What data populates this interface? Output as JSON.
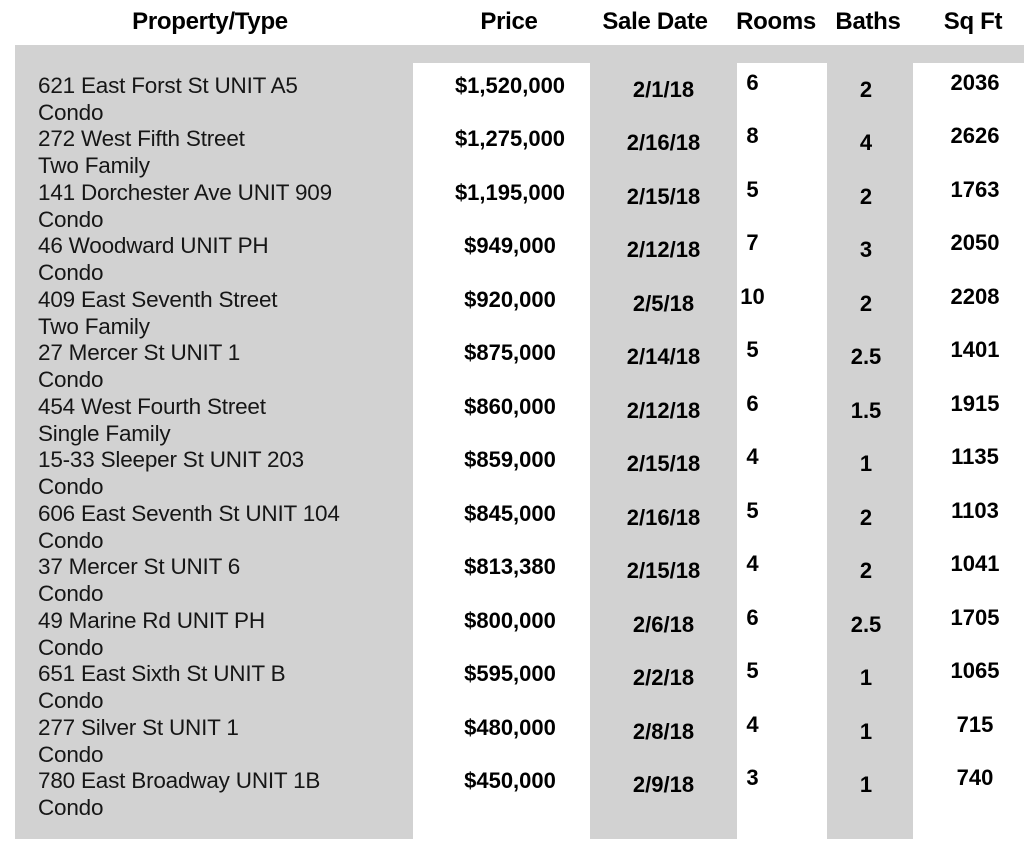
{
  "colors": {
    "table_background_gray": "#d2d2d2",
    "column_strip_white": "#ffffff",
    "text_black": "#000000"
  },
  "table": {
    "columns": {
      "property_type": "Property/Type",
      "price": "Price",
      "sale_date": "Sale Date",
      "rooms": "Rooms",
      "baths": "Baths",
      "sqft": "Sq Ft"
    },
    "rows": [
      {
        "address": "621 East Forst St UNIT A5",
        "type": "Condo",
        "price": "$1,520,000",
        "sale_date": "2/1/18",
        "rooms": "6",
        "baths": "2",
        "sqft": "2036"
      },
      {
        "address": "272 West Fifth Street",
        "type": "Two Family",
        "price": "$1,275,000",
        "sale_date": "2/16/18",
        "rooms": "8",
        "baths": "4",
        "sqft": "2626"
      },
      {
        "address": "141 Dorchester Ave UNIT 909",
        "type": "Condo",
        "price": "$1,195,000",
        "sale_date": "2/15/18",
        "rooms": "5",
        "baths": "2",
        "sqft": "1763"
      },
      {
        "address": "46 Woodward UNIT PH",
        "type": "Condo",
        "price": "$949,000",
        "sale_date": "2/12/18",
        "rooms": "7",
        "baths": "3",
        "sqft": "2050"
      },
      {
        "address": "409 East Seventh Street",
        "type": "Two Family",
        "price": "$920,000",
        "sale_date": "2/5/18",
        "rooms": "10",
        "baths": "2",
        "sqft": "2208"
      },
      {
        "address": "27 Mercer St UNIT 1",
        "type": "Condo",
        "price": "$875,000",
        "sale_date": "2/14/18",
        "rooms": "5",
        "baths": "2.5",
        "sqft": "1401"
      },
      {
        "address": "454 West Fourth Street",
        "type": "Single Family",
        "price": "$860,000",
        "sale_date": "2/12/18",
        "rooms": "6",
        "baths": "1.5",
        "sqft": "1915"
      },
      {
        "address": "15-33 Sleeper St UNIT 203",
        "type": "Condo",
        "price": "$859,000",
        "sale_date": "2/15/18",
        "rooms": "4",
        "baths": "1",
        "sqft": "1135"
      },
      {
        "address": "606 East Seventh St UNIT 104",
        "type": "Condo",
        "price": "$845,000",
        "sale_date": "2/16/18",
        "rooms": "5",
        "baths": "2",
        "sqft": "1103"
      },
      {
        "address": "37 Mercer St UNIT 6",
        "type": "Condo",
        "price": "$813,380",
        "sale_date": "2/15/18",
        "rooms": "4",
        "baths": "2",
        "sqft": "1041"
      },
      {
        "address": "49 Marine Rd UNIT PH",
        "type": "Condo",
        "price": "$800,000",
        "sale_date": "2/6/18",
        "rooms": "6",
        "baths": "2.5",
        "sqft": "1705"
      },
      {
        "address": "651 East Sixth St UNIT B",
        "type": "Condo",
        "price": "$595,000",
        "sale_date": "2/2/18",
        "rooms": "5",
        "baths": "1",
        "sqft": "1065"
      },
      {
        "address": "277 Silver St UNIT 1",
        "type": "Condo",
        "price": "$480,000",
        "sale_date": "2/8/18",
        "rooms": "4",
        "baths": "1",
        "sqft": "715"
      },
      {
        "address": "780 East Broadway UNIT 1B",
        "type": "Condo",
        "price": "$450,000",
        "sale_date": "2/9/18",
        "rooms": "3",
        "baths": "1",
        "sqft": "740"
      }
    ]
  }
}
